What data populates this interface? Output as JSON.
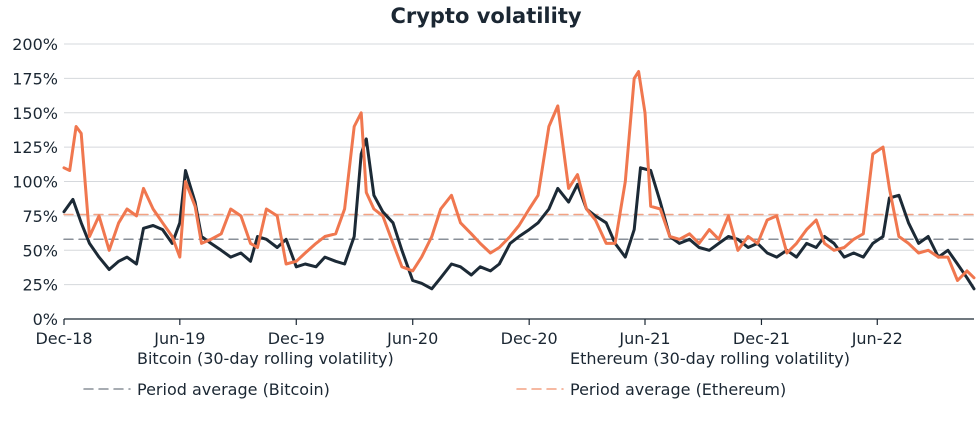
{
  "colors": {
    "bitcoin": "#1c2a36",
    "ethereum": "#f0774f",
    "bitcoin_avg": "#8a9099",
    "ethereum_avg": "#f3a283",
    "grid": "#d5d8dc",
    "axis": "#1b2733"
  },
  "chart_data": {
    "type": "line",
    "title": "Crypto volatility",
    "xlabel": "",
    "ylabel": "",
    "ylim": [
      0,
      200
    ],
    "y_ticks": [
      0,
      25,
      50,
      75,
      100,
      125,
      150,
      175,
      200
    ],
    "y_tick_labels": [
      "0%",
      "25%",
      "50%",
      "75%",
      "100%",
      "125%",
      "150%",
      "175%",
      "200%"
    ],
    "x_range": [
      "2018-12-01",
      "2022-10-31"
    ],
    "x_ticks": [
      "2018-12-01",
      "2019-06-01",
      "2019-12-01",
      "2020-06-01",
      "2020-12-01",
      "2021-06-01",
      "2021-12-01",
      "2022-06-01"
    ],
    "x_tick_labels": [
      "Dec-18",
      "Jun-19",
      "Dec-19",
      "Jun-20",
      "Dec-20",
      "Jun-21",
      "Dec-21",
      "Jun-22"
    ],
    "grid": true,
    "legend_position": "bottom",
    "series": [
      {
        "name": "Bitcoin (30-day rolling volatility)",
        "color": "#1c2a36",
        "style": "solid",
        "x": [
          "2018-12-01",
          "2018-12-15",
          "2018-12-28",
          "2019-01-10",
          "2019-01-25",
          "2019-02-10",
          "2019-02-25",
          "2019-03-10",
          "2019-03-25",
          "2019-04-05",
          "2019-04-20",
          "2019-05-05",
          "2019-05-20",
          "2019-06-01",
          "2019-06-10",
          "2019-06-25",
          "2019-07-05",
          "2019-07-20",
          "2019-08-05",
          "2019-08-20",
          "2019-09-05",
          "2019-09-20",
          "2019-10-01",
          "2019-10-15",
          "2019-11-01",
          "2019-11-15",
          "2019-12-01",
          "2019-12-15",
          "2020-01-01",
          "2020-01-15",
          "2020-02-01",
          "2020-02-15",
          "2020-03-01",
          "2020-03-12",
          "2020-03-20",
          "2020-04-01",
          "2020-04-15",
          "2020-05-01",
          "2020-05-15",
          "2020-06-01",
          "2020-06-15",
          "2020-07-01",
          "2020-07-15",
          "2020-08-01",
          "2020-08-15",
          "2020-09-01",
          "2020-09-15",
          "2020-10-01",
          "2020-10-15",
          "2020-11-01",
          "2020-11-15",
          "2020-12-01",
          "2020-12-15",
          "2021-01-01",
          "2021-01-15",
          "2021-02-01",
          "2021-02-15",
          "2021-03-01",
          "2021-03-15",
          "2021-04-01",
          "2021-04-15",
          "2021-05-01",
          "2021-05-15",
          "2021-05-25",
          "2021-06-10",
          "2021-06-25",
          "2021-07-10",
          "2021-07-25",
          "2021-08-10",
          "2021-08-25",
          "2021-09-10",
          "2021-09-25",
          "2021-10-10",
          "2021-10-25",
          "2021-11-10",
          "2021-11-25",
          "2021-12-10",
          "2021-12-25",
          "2022-01-10",
          "2022-01-25",
          "2022-02-10",
          "2022-02-25",
          "2022-03-10",
          "2022-03-25",
          "2022-04-10",
          "2022-04-25",
          "2022-05-10",
          "2022-05-25",
          "2022-06-10",
          "2022-06-20",
          "2022-07-05",
          "2022-07-20",
          "2022-08-05",
          "2022-08-20",
          "2022-09-05",
          "2022-09-20",
          "2022-10-05",
          "2022-10-20",
          "2022-10-31"
        ],
        "values": [
          78,
          87,
          70,
          55,
          45,
          36,
          42,
          45,
          40,
          66,
          68,
          65,
          55,
          70,
          108,
          85,
          60,
          55,
          50,
          45,
          48,
          42,
          60,
          58,
          52,
          58,
          38,
          40,
          38,
          45,
          42,
          40,
          60,
          120,
          131,
          90,
          78,
          70,
          50,
          28,
          26,
          22,
          30,
          40,
          38,
          32,
          38,
          35,
          40,
          55,
          60,
          65,
          70,
          80,
          95,
          85,
          98,
          80,
          75,
          70,
          55,
          45,
          65,
          110,
          108,
          85,
          60,
          55,
          58,
          52,
          50,
          55,
          60,
          58,
          52,
          55,
          48,
          45,
          50,
          45,
          55,
          52,
          60,
          55,
          45,
          48,
          45,
          55,
          60,
          88,
          90,
          70,
          55,
          60,
          45,
          50,
          40,
          30,
          22
        ]
      },
      {
        "name": "Ethereum (30-day rolling volatility)",
        "color": "#f0774f",
        "style": "solid",
        "x": [
          "2018-12-01",
          "2018-12-10",
          "2018-12-20",
          "2018-12-28",
          "2019-01-10",
          "2019-01-25",
          "2019-02-10",
          "2019-02-25",
          "2019-03-10",
          "2019-03-25",
          "2019-04-05",
          "2019-04-20",
          "2019-05-05",
          "2019-05-20",
          "2019-06-01",
          "2019-06-10",
          "2019-06-25",
          "2019-07-05",
          "2019-07-20",
          "2019-08-05",
          "2019-08-20",
          "2019-09-05",
          "2019-09-20",
          "2019-10-01",
          "2019-10-15",
          "2019-11-01",
          "2019-11-15",
          "2019-12-01",
          "2019-12-15",
          "2020-01-01",
          "2020-01-15",
          "2020-02-01",
          "2020-02-15",
          "2020-03-01",
          "2020-03-12",
          "2020-03-20",
          "2020-04-01",
          "2020-04-15",
          "2020-05-01",
          "2020-05-15",
          "2020-06-01",
          "2020-06-15",
          "2020-07-01",
          "2020-07-15",
          "2020-08-01",
          "2020-08-15",
          "2020-09-01",
          "2020-09-15",
          "2020-10-01",
          "2020-10-15",
          "2020-11-01",
          "2020-11-15",
          "2020-12-01",
          "2020-12-15",
          "2021-01-01",
          "2021-01-15",
          "2021-02-01",
          "2021-02-15",
          "2021-03-01",
          "2021-03-15",
          "2021-04-01",
          "2021-04-15",
          "2021-05-01",
          "2021-05-15",
          "2021-05-22",
          "2021-06-01",
          "2021-06-10",
          "2021-06-25",
          "2021-07-10",
          "2021-07-25",
          "2021-08-10",
          "2021-08-25",
          "2021-09-10",
          "2021-09-25",
          "2021-10-10",
          "2021-10-25",
          "2021-11-10",
          "2021-11-25",
          "2021-12-10",
          "2021-12-25",
          "2022-01-10",
          "2022-01-25",
          "2022-02-10",
          "2022-02-25",
          "2022-03-10",
          "2022-03-25",
          "2022-04-10",
          "2022-04-25",
          "2022-05-10",
          "2022-05-25",
          "2022-06-10",
          "2022-06-20",
          "2022-07-05",
          "2022-07-20",
          "2022-08-05",
          "2022-08-20",
          "2022-09-05",
          "2022-09-20",
          "2022-10-05",
          "2022-10-20",
          "2022-10-31"
        ],
        "values": [
          110,
          108,
          140,
          135,
          60,
          75,
          50,
          70,
          80,
          75,
          95,
          80,
          70,
          60,
          45,
          100,
          82,
          55,
          58,
          62,
          80,
          75,
          55,
          52,
          80,
          75,
          40,
          42,
          48,
          55,
          60,
          62,
          80,
          140,
          150,
          92,
          80,
          75,
          55,
          38,
          35,
          45,
          60,
          80,
          90,
          70,
          62,
          55,
          48,
          52,
          60,
          68,
          80,
          90,
          140,
          155,
          95,
          105,
          80,
          72,
          55,
          55,
          100,
          175,
          180,
          150,
          82,
          80,
          60,
          58,
          62,
          55,
          65,
          58,
          75,
          50,
          60,
          55,
          72,
          75,
          48,
          55,
          65,
          72,
          55,
          50,
          52,
          58,
          62,
          120,
          125,
          95,
          60,
          55,
          48,
          50,
          45,
          45,
          28,
          35,
          30
        ]
      },
      {
        "name": "Period average (Bitcoin)",
        "color": "#8a9099",
        "style": "dashed",
        "x": [
          "2018-12-01",
          "2022-10-31"
        ],
        "values": [
          58,
          58
        ]
      },
      {
        "name": "Period average (Ethereum)",
        "color": "#f3a283",
        "style": "dashed",
        "x": [
          "2018-12-01",
          "2022-10-31"
        ],
        "values": [
          76,
          76
        ]
      }
    ]
  }
}
